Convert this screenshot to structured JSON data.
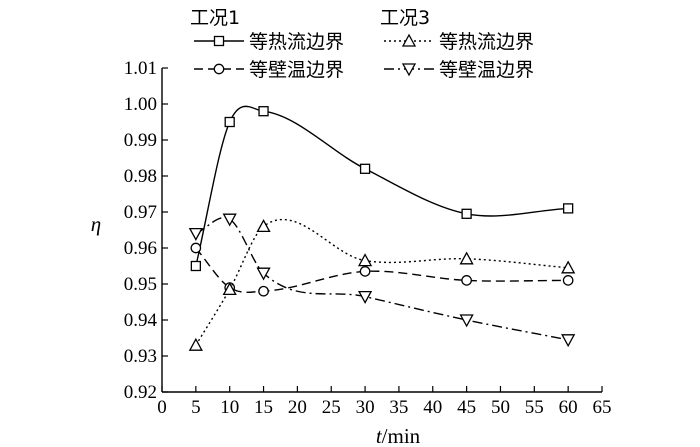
{
  "chart_data": {
    "type": "line",
    "xlabel_italic": "t",
    "xlabel_unit": "/min",
    "ylabel": "η",
    "xlim": [
      0,
      65
    ],
    "ylim": [
      0.92,
      1.01
    ],
    "x_ticks": [
      0,
      5,
      10,
      15,
      20,
      25,
      30,
      35,
      40,
      45,
      50,
      55,
      60,
      65
    ],
    "y_ticks": [
      0.92,
      0.93,
      0.94,
      0.95,
      0.96,
      0.97,
      0.98,
      0.99,
      1.0,
      1.01
    ],
    "y_tick_labels": [
      "0.92",
      "0.93",
      "0.94",
      "0.95",
      "0.96",
      "0.97",
      "0.98",
      "0.99",
      "1.00",
      "1.01"
    ],
    "grid": false,
    "legend_placement": "top",
    "legend_groups": [
      {
        "title": "工况1",
        "entries": [
          "等热流边界",
          "等壁温边界"
        ]
      },
      {
        "title": "工况3",
        "entries": [
          "等热流边界",
          "等壁温边界"
        ]
      }
    ],
    "series": [
      {
        "group": "工况1",
        "name": "等热流边界",
        "marker": "square",
        "dash": "",
        "x": [
          5,
          10,
          15,
          30,
          45,
          60
        ],
        "y": [
          0.955,
          0.995,
          0.998,
          0.982,
          0.9695,
          0.971
        ]
      },
      {
        "group": "工况1",
        "name": "等壁温边界",
        "marker": "circle",
        "dash": "9,5",
        "x": [
          5,
          10,
          15,
          30,
          45,
          60
        ],
        "y": [
          0.96,
          0.949,
          0.948,
          0.9535,
          0.951,
          0.951
        ]
      },
      {
        "group": "工况3",
        "name": "等热流边界",
        "marker": "triangle-up",
        "dash": "2,3",
        "x": [
          5,
          10,
          15,
          30,
          45,
          60
        ],
        "y": [
          0.933,
          0.9485,
          0.966,
          0.9565,
          0.957,
          0.9545
        ]
      },
      {
        "group": "工况3",
        "name": "等壁温边界",
        "marker": "triangle-down",
        "dash": "10,4,2,4",
        "x": [
          5,
          10,
          15,
          30,
          45,
          60
        ],
        "y": [
          0.964,
          0.968,
          0.953,
          0.9465,
          0.94,
          0.9345
        ]
      }
    ]
  }
}
